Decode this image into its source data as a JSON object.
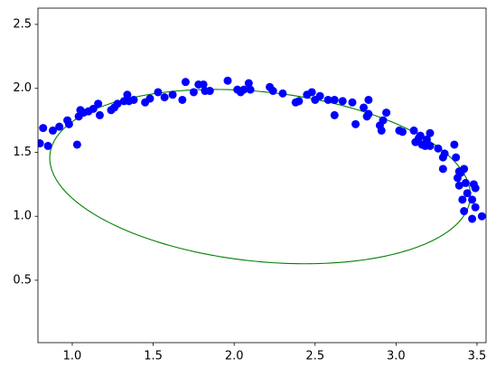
{
  "chart_data": {
    "type": "scatter",
    "x": [
      0.8,
      0.82,
      0.85,
      0.88,
      0.92,
      0.97,
      0.98,
      1.03,
      1.04,
      1.05,
      1.07,
      1.1,
      1.13,
      1.16,
      1.17,
      1.24,
      1.26,
      1.28,
      1.32,
      1.34,
      1.35,
      1.38,
      1.45,
      1.48,
      1.53,
      1.57,
      1.62,
      1.68,
      1.7,
      1.75,
      1.78,
      1.81,
      1.82,
      1.85,
      1.96,
      2.02,
      2.04,
      2.06,
      2.09,
      2.1,
      2.22,
      2.24,
      2.3,
      2.38,
      2.4,
      2.45,
      2.48,
      2.5,
      2.53,
      2.58,
      2.62,
      2.62,
      2.67,
      2.73,
      2.75,
      2.8,
      2.82,
      2.83,
      2.83,
      2.9,
      2.92,
      2.94,
      2.91,
      3.02,
      3.04,
      3.11,
      3.12,
      3.15,
      3.16,
      3.18,
      3.19,
      3.21,
      3.26,
      3.29,
      3.29,
      3.3,
      3.36,
      3.37,
      3.38,
      3.39,
      3.39,
      3.4,
      3.41,
      3.42,
      3.42,
      3.44,
      3.47,
      3.47,
      3.48,
      3.49,
      3.49,
      3.53,
      3.21,
      3.14,
      3.43
    ],
    "values": [
      1.57,
      1.69,
      1.55,
      1.67,
      1.7,
      1.75,
      1.72,
      1.56,
      1.78,
      1.83,
      1.81,
      1.82,
      1.84,
      1.88,
      1.79,
      1.83,
      1.85,
      1.88,
      1.9,
      1.95,
      1.9,
      1.91,
      1.89,
      1.92,
      1.97,
      1.93,
      1.95,
      1.91,
      2.05,
      1.97,
      2.03,
      2.03,
      1.98,
      1.98,
      2.06,
      1.99,
      1.97,
      1.99,
      2.04,
      1.99,
      2.01,
      1.98,
      1.96,
      1.89,
      1.9,
      1.95,
      1.97,
      1.91,
      1.94,
      1.91,
      1.79,
      1.91,
      1.9,
      1.89,
      1.72,
      1.85,
      1.78,
      1.8,
      1.91,
      1.71,
      1.75,
      1.81,
      1.67,
      1.67,
      1.66,
      1.67,
      1.58,
      1.63,
      1.56,
      1.55,
      1.6,
      1.65,
      1.53,
      1.37,
      1.46,
      1.49,
      1.56,
      1.46,
      1.3,
      1.35,
      1.24,
      1.34,
      1.13,
      1.04,
      1.37,
      1.18,
      0.98,
      1.13,
      1.25,
      1.07,
      1.22,
      1.0,
      1.55,
      1.61,
      1.26
    ],
    "color": "#0000ff",
    "ellipse": {
      "center": [
        2.16,
        1.31
      ],
      "semi_axes": [
        1.31,
        0.66
      ],
      "angle": -0.15,
      "color": "#008000"
    },
    "xlim": [
      0.788,
      3.556
    ],
    "ylim": [
      0.012,
      2.627
    ],
    "xticks": [
      {
        "value": 1,
        "label": "1.0"
      },
      {
        "value": 1.5,
        "label": "1.5"
      },
      {
        "value": 2,
        "label": "2.0"
      },
      {
        "value": 2.5,
        "label": "2.5"
      },
      {
        "value": 3,
        "label": "3.0"
      },
      {
        "value": 3.5,
        "label": "3.5"
      }
    ],
    "yticks": [
      {
        "value": 0.5,
        "label": "0.5"
      },
      {
        "value": 1,
        "label": "1.0"
      },
      {
        "value": 1.5,
        "label": "1.5"
      },
      {
        "value": 2,
        "label": "2.0"
      },
      {
        "value": 2.5,
        "label": "2.5"
      }
    ]
  }
}
